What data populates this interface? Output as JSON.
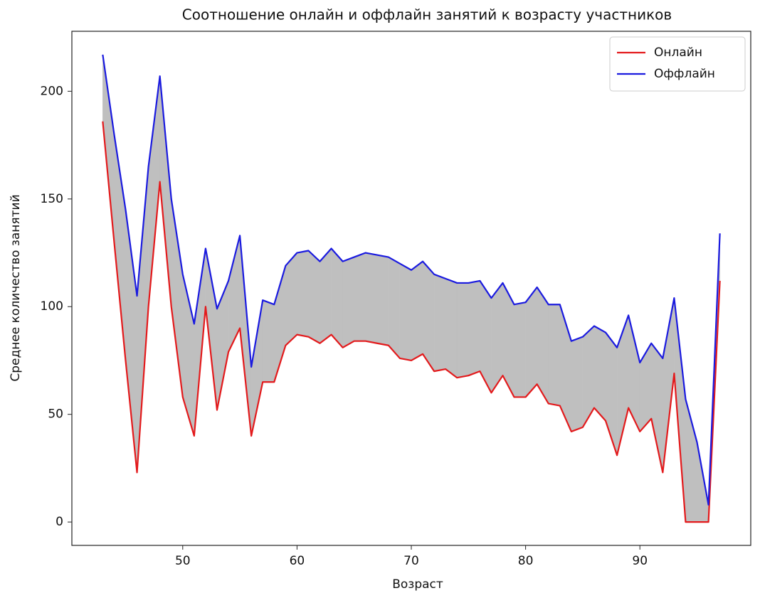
{
  "chart_data": {
    "type": "line",
    "title": "Соотношение онлайн и оффлайн занятий к возрасту участников",
    "x_label": "Возраст",
    "y_label": "Среднее количество занятий",
    "x": [
      43,
      44,
      45,
      46,
      47,
      48,
      49,
      50,
      51,
      52,
      53,
      54,
      55,
      56,
      57,
      58,
      59,
      60,
      61,
      62,
      63,
      64,
      65,
      66,
      67,
      68,
      69,
      70,
      71,
      72,
      73,
      74,
      75,
      76,
      77,
      78,
      79,
      80,
      81,
      82,
      83,
      84,
      85,
      86,
      87,
      88,
      89,
      90,
      91,
      92,
      93,
      94,
      95,
      96,
      97
    ],
    "series": [
      {
        "name": "Онлайн",
        "color": "#e31a1c",
        "values": [
          186,
          130,
          75,
          23,
          100,
          158,
          100,
          58,
          40,
          100,
          52,
          79,
          90,
          40,
          65,
          65,
          82,
          87,
          86,
          83,
          87,
          81,
          84,
          84,
          83,
          82,
          76,
          75,
          78,
          70,
          71,
          67,
          68,
          70,
          60,
          68,
          58,
          58,
          64,
          55,
          54,
          42,
          44,
          53,
          47,
          31,
          53,
          42,
          48,
          23,
          69,
          0,
          0,
          0,
          112
        ]
      },
      {
        "name": "Оффлайн",
        "color": "#1a1adf",
        "values": [
          217,
          180,
          145,
          105,
          165,
          207,
          150,
          115,
          92,
          127,
          99,
          112,
          133,
          72,
          103,
          101,
          119,
          125,
          126,
          121,
          127,
          121,
          123,
          125,
          124,
          123,
          120,
          117,
          121,
          115,
          113,
          111,
          111,
          112,
          104,
          111,
          101,
          102,
          109,
          101,
          101,
          84,
          86,
          91,
          88,
          81,
          96,
          74,
          83,
          76,
          104,
          57,
          37,
          8,
          134
        ]
      }
    ],
    "fill_between_color": "#bfbfbf",
    "xlim": [
      40.3,
      99.7
    ],
    "xticks": [
      50,
      60,
      70,
      80,
      90
    ],
    "ylim": [
      -10.85,
      227.85
    ],
    "yticks": [
      0,
      50,
      100,
      150,
      200
    ],
    "legend": "upper right",
    "grid": false
  }
}
